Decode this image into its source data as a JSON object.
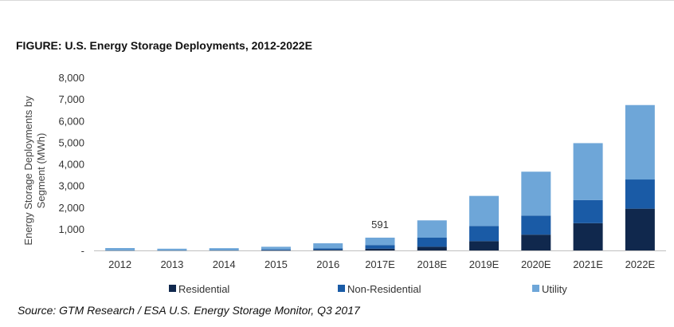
{
  "header": {
    "title": "FIGURE: U.S. Energy Storage Deployments, 2012-2022E"
  },
  "footer": {
    "source": "Source: GTM Research / ESA U.S. Energy Storage Monitor, Q3 2017"
  },
  "chart_data": {
    "type": "bar",
    "stacked": true,
    "title": "FIGURE: U.S. Energy Storage Deployments, 2012-2022E",
    "xlabel": "",
    "ylabel_lines": [
      "Energy Storage Deployments by",
      "Segment (MWh)"
    ],
    "ylim": [
      0,
      8000
    ],
    "yticks": [
      0,
      1000,
      2000,
      3000,
      4000,
      5000,
      6000,
      7000,
      8000
    ],
    "ytick_labels": [
      "-",
      "1,000",
      "2,000",
      "3,000",
      "4,000",
      "5,000",
      "6,000",
      "7,000",
      "8,000"
    ],
    "categories": [
      "2012",
      "2013",
      "2014",
      "2015",
      "2016",
      "2017E",
      "2018E",
      "2019E",
      "2020E",
      "2021E",
      "2022E"
    ],
    "series": [
      {
        "name": "Residential",
        "color": "#10284d",
        "values": [
          0,
          0,
          0,
          10,
          30,
          80,
          170,
          430,
          730,
          1260,
          1930
        ]
      },
      {
        "name": "Non-Residential",
        "color": "#1a5ba6",
        "values": [
          10,
          10,
          15,
          40,
          70,
          170,
          420,
          700,
          880,
          1070,
          1350
        ]
      },
      {
        "name": "Utility",
        "color": "#6ea6d8",
        "values": [
          100,
          70,
          90,
          120,
          230,
          341,
          800,
          1390,
          2030,
          2630,
          3440
        ]
      }
    ],
    "annotations": [
      {
        "category": "2017E",
        "text": "591"
      }
    ],
    "grid": false,
    "legend_position": "bottom"
  }
}
